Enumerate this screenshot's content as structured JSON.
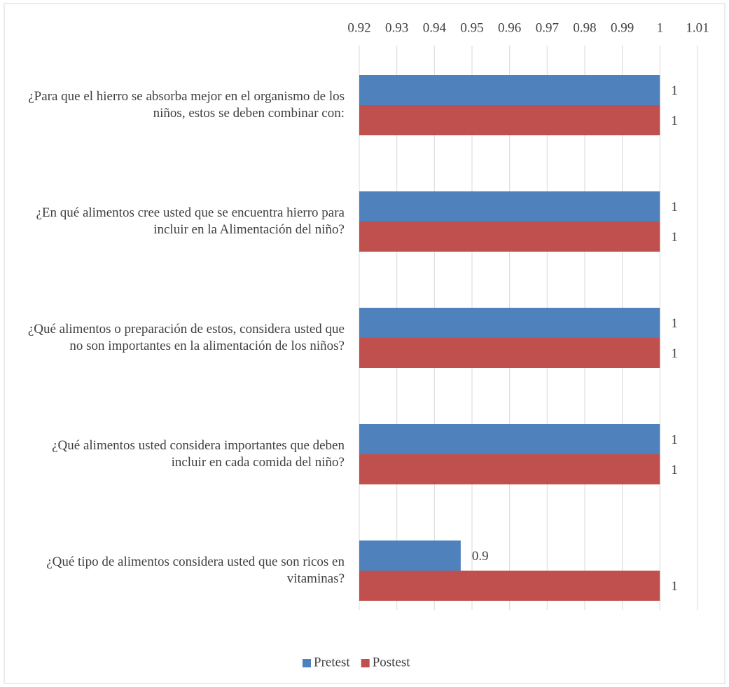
{
  "chart_data": {
    "type": "bar",
    "orientation": "horizontal",
    "categories": [
      "¿Para que el hierro se absorba mejor en el organismo de los niños, estos se deben combinar con:",
      "¿En qué alimentos cree usted que se encuentra hierro para incluir en la Alimentación del niño?",
      "¿Qué alimentos o preparación de estos, considera usted que no son importantes en la alimentación de los niños?",
      "¿Qué alimentos usted considera importantes que deben incluir en cada comida del niño?",
      "¿Qué tipo de alimentos considera usted que son ricos en vitaminas?"
    ],
    "series": [
      {
        "name": "Pretest",
        "color": "#4f81bd",
        "values": [
          1,
          1,
          1,
          1,
          0.947
        ],
        "value_labels": [
          "1",
          "1",
          "1",
          "1",
          "0.9"
        ]
      },
      {
        "name": "Postest",
        "color": "#c0504d",
        "values": [
          1,
          1,
          1,
          1,
          1
        ]
      }
    ],
    "xlim": [
      0.92,
      1.01
    ],
    "xticks": [
      0.92,
      0.93,
      0.94,
      0.95,
      0.96,
      0.97,
      0.98,
      0.99,
      1,
      1.01
    ],
    "grid": true,
    "legend": "bottom"
  }
}
